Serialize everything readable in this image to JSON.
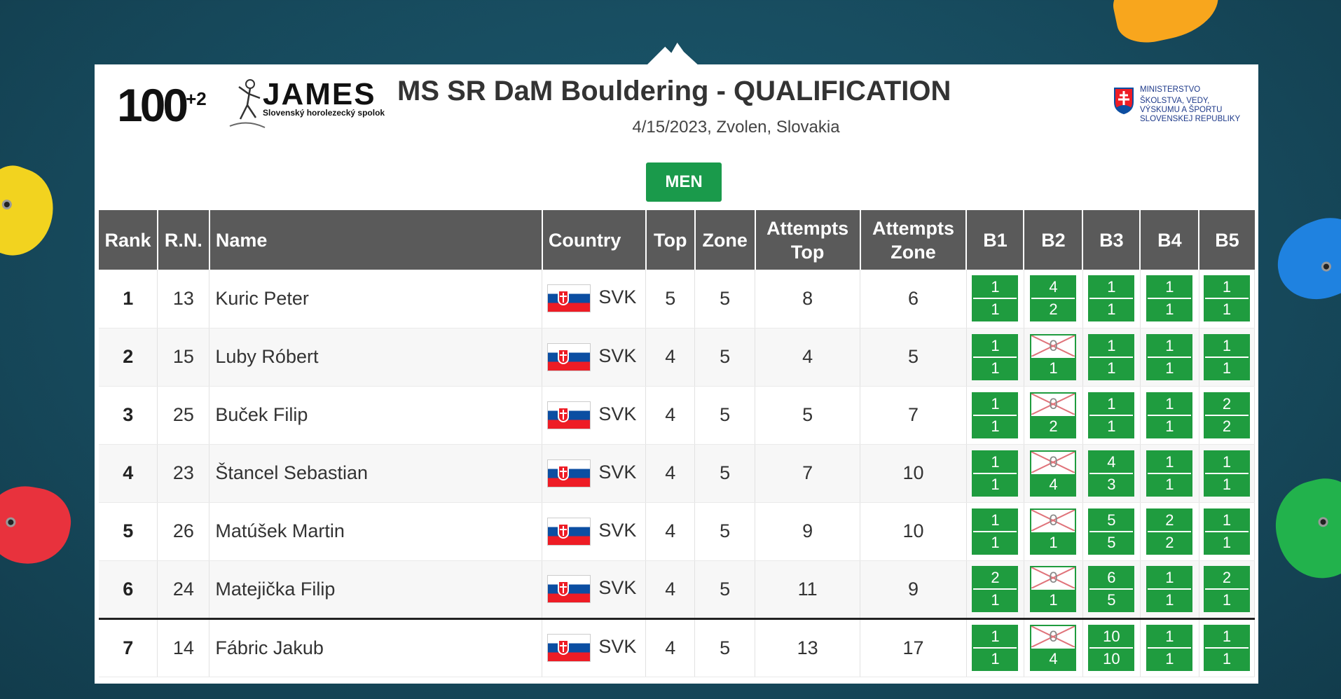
{
  "header": {
    "logo_number": "100",
    "logo_superscript": "+2",
    "org_name": "JAMES",
    "org_subtitle": "Slovenský horolezecký spolok",
    "title": "MS SR DaM Bouldering - QUALIFICATION",
    "subtitle": "4/15/2023, Zvolen, Slovakia",
    "ministry_lines": [
      "MINISTERSTVO",
      "ŠKOLSTVA, VEDY,",
      "VÝSKUMU A ŠPORTU",
      "SLOVENSKEJ REPUBLIKY"
    ]
  },
  "category_button": "MEN",
  "table": {
    "headers": {
      "rank": "Rank",
      "rn": "R.N.",
      "name": "Name",
      "country": "Country",
      "top": "Top",
      "zone": "Zone",
      "attempts_top_1": "Attempts",
      "attempts_top_2": "Top",
      "attempts_zone_1": "Attempts",
      "attempts_zone_2": "Zone",
      "b1": "B1",
      "b2": "B2",
      "b3": "B3",
      "b4": "B4",
      "b5": "B5"
    },
    "rows": [
      {
        "rank": "1",
        "rn": "13",
        "name": "Kuric Peter",
        "country": "SVK",
        "top": "5",
        "zone": "5",
        "att_top": "8",
        "att_zone": "6",
        "b": [
          {
            "t": "1",
            "z": "1",
            "top": true
          },
          {
            "t": "4",
            "z": "2",
            "top": true
          },
          {
            "t": "1",
            "z": "1",
            "top": true
          },
          {
            "t": "1",
            "z": "1",
            "top": true
          },
          {
            "t": "1",
            "z": "1",
            "top": true
          }
        ]
      },
      {
        "rank": "2",
        "rn": "15",
        "name": "Luby Róbert",
        "country": "SVK",
        "top": "4",
        "zone": "5",
        "att_top": "4",
        "att_zone": "5",
        "b": [
          {
            "t": "1",
            "z": "1",
            "top": true
          },
          {
            "t": "0",
            "z": "1",
            "top": false
          },
          {
            "t": "1",
            "z": "1",
            "top": true
          },
          {
            "t": "1",
            "z": "1",
            "top": true
          },
          {
            "t": "1",
            "z": "1",
            "top": true
          }
        ]
      },
      {
        "rank": "3",
        "rn": "25",
        "name": "Buček Filip",
        "country": "SVK",
        "top": "4",
        "zone": "5",
        "att_top": "5",
        "att_zone": "7",
        "b": [
          {
            "t": "1",
            "z": "1",
            "top": true
          },
          {
            "t": "0",
            "z": "2",
            "top": false
          },
          {
            "t": "1",
            "z": "1",
            "top": true
          },
          {
            "t": "1",
            "z": "1",
            "top": true
          },
          {
            "t": "2",
            "z": "2",
            "top": true
          }
        ]
      },
      {
        "rank": "4",
        "rn": "23",
        "name": "Štancel Sebastian",
        "country": "SVK",
        "top": "4",
        "zone": "5",
        "att_top": "7",
        "att_zone": "10",
        "b": [
          {
            "t": "1",
            "z": "1",
            "top": true
          },
          {
            "t": "0",
            "z": "4",
            "top": false
          },
          {
            "t": "4",
            "z": "3",
            "top": true
          },
          {
            "t": "1",
            "z": "1",
            "top": true
          },
          {
            "t": "1",
            "z": "1",
            "top": true
          }
        ]
      },
      {
        "rank": "5",
        "rn": "26",
        "name": "Matúšek Martin",
        "country": "SVK",
        "top": "4",
        "zone": "5",
        "att_top": "9",
        "att_zone": "10",
        "b": [
          {
            "t": "1",
            "z": "1",
            "top": true
          },
          {
            "t": "0",
            "z": "1",
            "top": false
          },
          {
            "t": "5",
            "z": "5",
            "top": true
          },
          {
            "t": "2",
            "z": "2",
            "top": true
          },
          {
            "t": "1",
            "z": "1",
            "top": true
          }
        ]
      },
      {
        "rank": "6",
        "rn": "24",
        "name": "Matejička Filip",
        "country": "SVK",
        "top": "4",
        "zone": "5",
        "att_top": "11",
        "att_zone": "9",
        "b": [
          {
            "t": "2",
            "z": "1",
            "top": true
          },
          {
            "t": "0",
            "z": "1",
            "top": false
          },
          {
            "t": "6",
            "z": "5",
            "top": true
          },
          {
            "t": "1",
            "z": "1",
            "top": true
          },
          {
            "t": "2",
            "z": "1",
            "top": true
          }
        ]
      },
      {
        "rank": "7",
        "rn": "14",
        "name": "Fábric Jakub",
        "country": "SVK",
        "top": "4",
        "zone": "5",
        "att_top": "13",
        "att_zone": "17",
        "b": [
          {
            "t": "1",
            "z": "1",
            "top": true
          },
          {
            "t": "0",
            "z": "4",
            "top": false
          },
          {
            "t": "10",
            "z": "10",
            "top": true
          },
          {
            "t": "1",
            "z": "1",
            "top": true
          },
          {
            "t": "1",
            "z": "1",
            "top": true
          }
        ]
      }
    ]
  },
  "colors": {
    "background": "#174b5e",
    "header_bg": "#5a5a5a",
    "accent_green": "#1a9a4b",
    "boulder_green": "#1f9c3f",
    "no_top_cross": "#e0737a"
  }
}
